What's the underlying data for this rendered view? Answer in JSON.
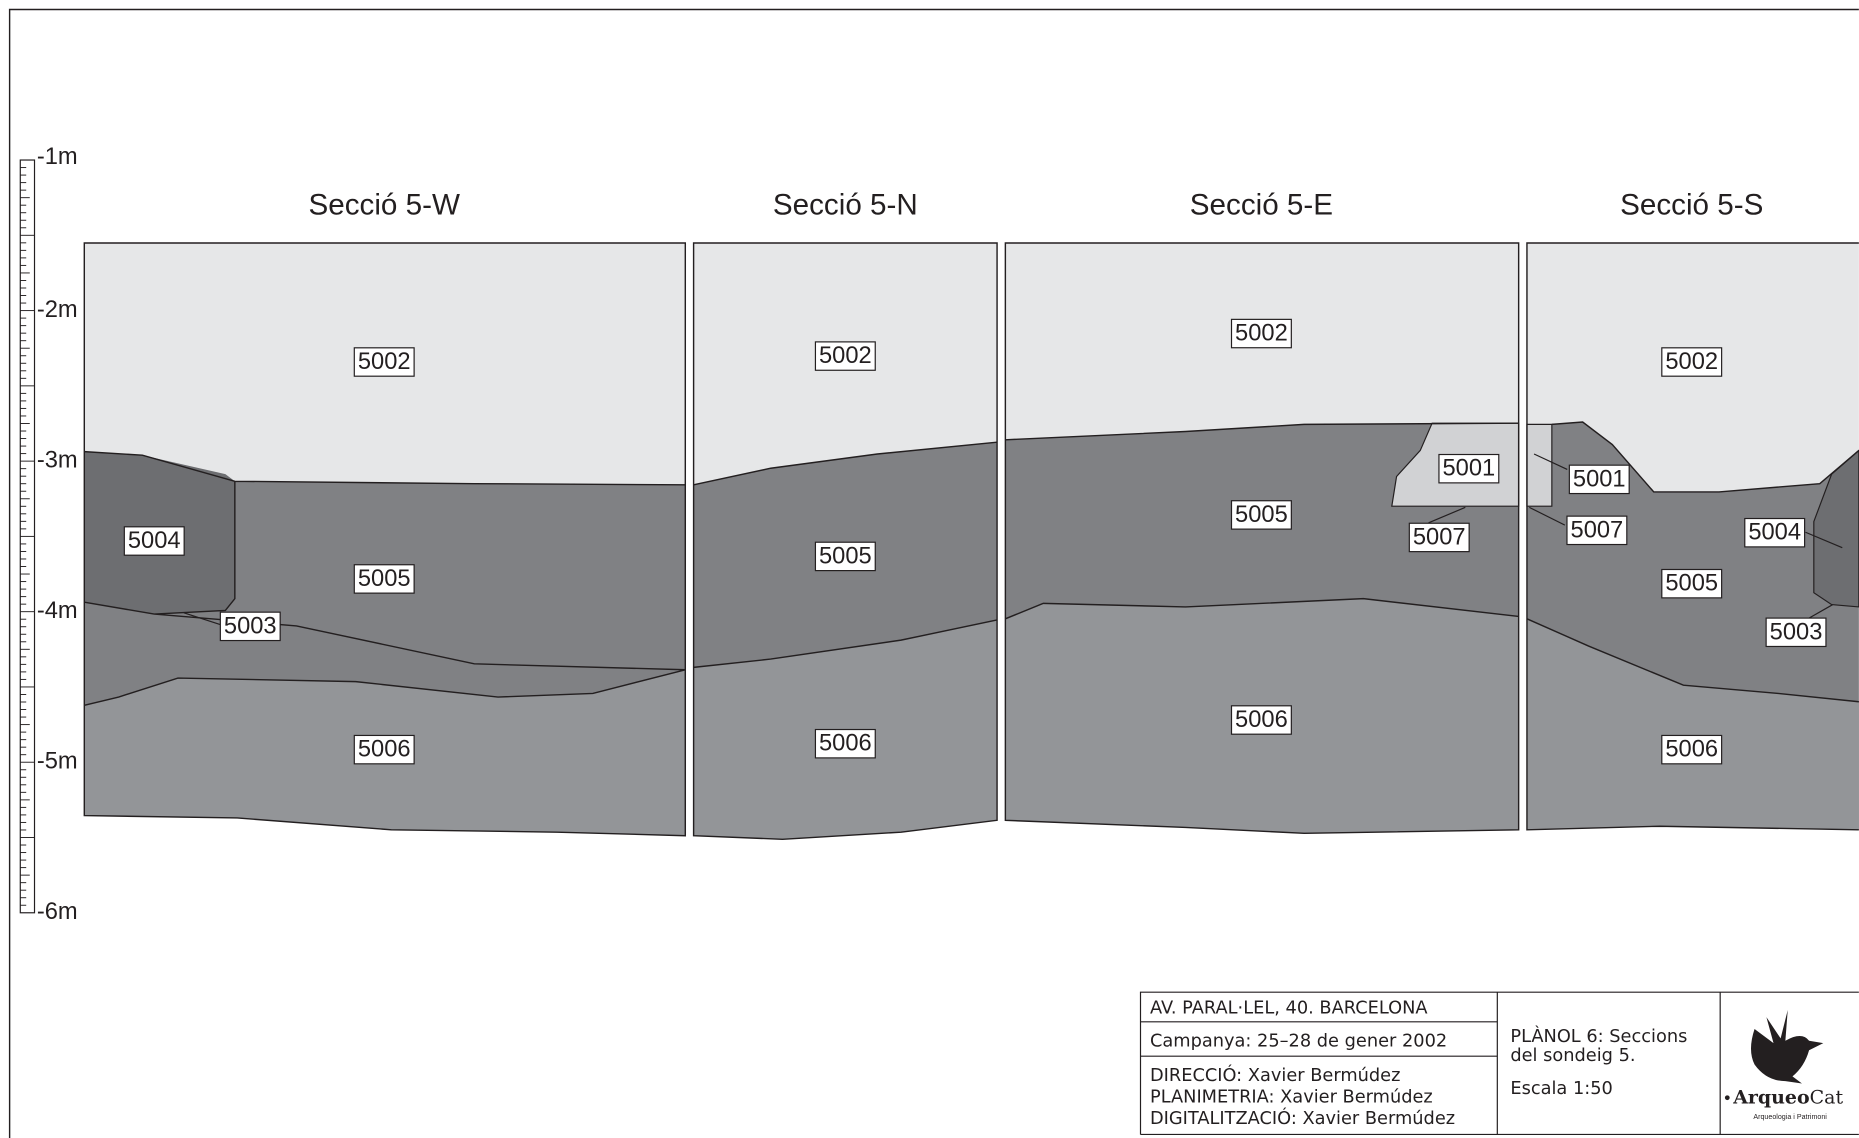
{
  "scale": {
    "labels": [
      "-1m",
      "-2m",
      "-3m",
      "-4m",
      "-5m",
      "-6m"
    ]
  },
  "sections": [
    {
      "title": "Secció 5-W",
      "layers": [
        "5002",
        "5004",
        "5005",
        "5003",
        "5006"
      ]
    },
    {
      "title": "Secció 5-N",
      "layers": [
        "5002",
        "5005",
        "5006"
      ]
    },
    {
      "title": "Secció 5-E",
      "layers": [
        "5002",
        "5001",
        "5005",
        "5007",
        "5006"
      ]
    },
    {
      "title": "Secció 5-S",
      "layers": [
        "5002",
        "5001",
        "5007",
        "5004",
        "5005",
        "5003",
        "5006"
      ]
    }
  ],
  "title_block": {
    "site": "AV. PARAL·LEL, 40. BARCELONA",
    "campaign": "Campanya: 25–28 de gener 2002",
    "credits": [
      "DIRECCIÓ: Xavier Bermúdez",
      "PLANIMETRIA: Xavier Bermúdez",
      "DIGITALITZACIÓ: Xavier Bermúdez"
    ],
    "plan": [
      "PLÀNOL 6: Seccions",
      "del sondeig 5."
    ],
    "scale": "Escala 1:50",
    "logo": {
      "name_bold": "Arqueo",
      "name_regular": "Cat",
      "tagline": "Arqueologia i Patrimoni"
    }
  }
}
